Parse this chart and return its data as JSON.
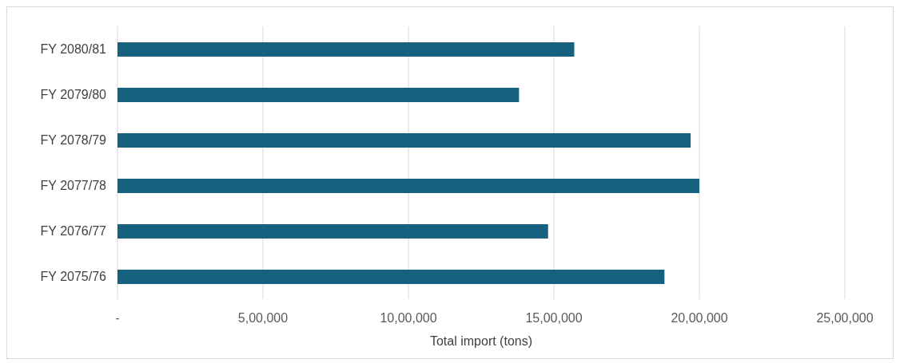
{
  "chart_data": {
    "type": "bar",
    "orientation": "horizontal",
    "xlabel": "Total import (tons)",
    "categories": [
      "FY 2080/81",
      "FY 2079/80",
      "FY 2078/79",
      "FY 2077/78",
      "FY 2076/77",
      "FY 2075/76"
    ],
    "values": [
      1570000,
      1380000,
      1970000,
      2000000,
      1480000,
      1880000
    ],
    "color": "#17607f",
    "xlim": [
      0,
      2500000
    ],
    "xticks": [
      {
        "value": 0,
        "label": "-"
      },
      {
        "value": 500000,
        "label": "5,00,000"
      },
      {
        "value": 1000000,
        "label": "10,00,000"
      },
      {
        "value": 1500000,
        "label": "15,00,000"
      },
      {
        "value": 2000000,
        "label": "20,00,000"
      },
      {
        "value": 2500000,
        "label": "25,00,000"
      }
    ],
    "grid": "x"
  }
}
